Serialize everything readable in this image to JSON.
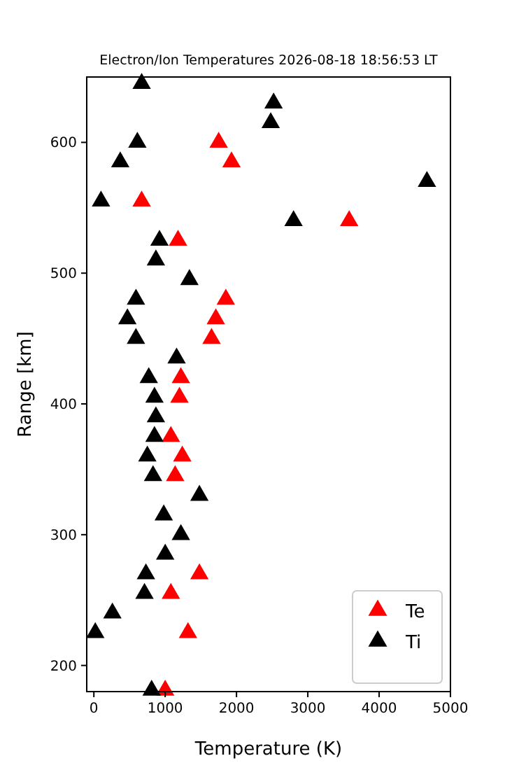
{
  "chart_data": {
    "type": "scatter",
    "title": "Electron/Ion Temperatures 2026-08-18 18:56:53 LT",
    "xlabel": "Temperature (K)",
    "ylabel": "Range [km]",
    "marker": "triangle",
    "legend": "bottom right",
    "grid": false,
    "xlim": [
      -100,
      5000
    ],
    "xticks": [
      0,
      1000,
      2000,
      3000,
      4000,
      5000
    ],
    "ylim": [
      180,
      650
    ],
    "yticks": [
      200,
      300,
      400,
      500,
      600
    ],
    "series": [
      {
        "name": "Te",
        "color": "#ff0000",
        "x": [
          null,
          null,
          null,
          1750,
          1930,
          null,
          670,
          3580,
          1180,
          null,
          null,
          1850,
          1710,
          1650,
          null,
          1220,
          1200,
          null,
          1080,
          1240,
          1140,
          null,
          null,
          null,
          null,
          1480,
          1080,
          null,
          1320,
          1000
        ],
        "values": [
          null,
          null,
          null,
          600,
          585,
          null,
          555,
          540,
          525,
          null,
          null,
          480,
          465,
          450,
          null,
          420,
          405,
          null,
          375,
          360,
          345,
          null,
          null,
          null,
          null,
          270,
          255,
          null,
          225,
          181
        ]
      },
      {
        "name": "Ti",
        "color": "#000000",
        "x": [
          670,
          2520,
          2480,
          610,
          370,
          4670,
          100,
          2800,
          920,
          870,
          1340,
          590,
          470,
          590,
          1160,
          770,
          850,
          870,
          850,
          750,
          830,
          1480,
          980,
          1220,
          1000,
          730,
          710,
          260,
          20,
          810
        ],
        "values": [
          645,
          630,
          615,
          600,
          585,
          570,
          555,
          540,
          525,
          510,
          495,
          480,
          465,
          450,
          435,
          420,
          405,
          390,
          375,
          360,
          345,
          330,
          315,
          300,
          285,
          270,
          255,
          240,
          225,
          181
        ]
      }
    ]
  }
}
